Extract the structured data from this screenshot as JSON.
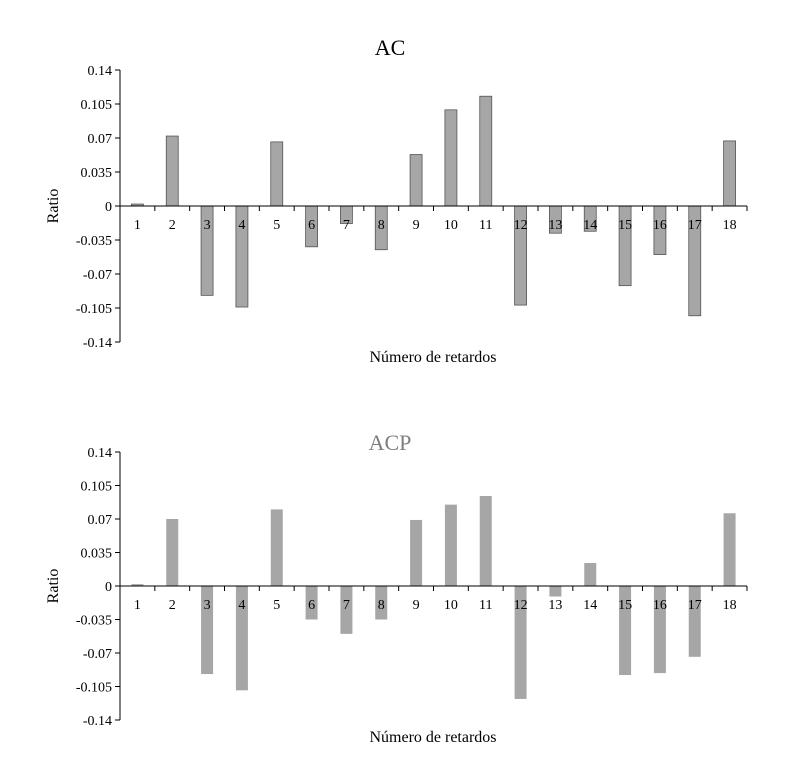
{
  "chart_data": [
    {
      "type": "bar",
      "title": "AC",
      "xlabel": "Número de retardos",
      "ylabel": "Ratio",
      "ylim": [
        -0.14,
        0.14
      ],
      "yticks": [
        "0.14",
        "0.105",
        "0.07",
        "0.035",
        "0",
        "-0.035",
        "-0.07",
        "-0.105",
        "-0.14"
      ],
      "categories": [
        "1",
        "2",
        "3",
        "4",
        "5",
        "6",
        "7",
        "8",
        "9",
        "10",
        "11",
        "12",
        "13",
        "14",
        "15",
        "16",
        "17",
        "18"
      ],
      "values": [
        0.002,
        0.072,
        -0.092,
        -0.104,
        0.066,
        -0.042,
        -0.018,
        -0.045,
        0.053,
        0.099,
        0.113,
        -0.102,
        -0.028,
        -0.026,
        -0.082,
        -0.05,
        -0.113,
        0.067
      ],
      "bar_color": "#a6a6a6",
      "bar_outline": "#555555",
      "title_color": "#000000",
      "grid": false
    },
    {
      "type": "bar",
      "title": "ACP",
      "xlabel": "Número de retardos",
      "ylabel": "Ratio",
      "ylim": [
        -0.14,
        0.14
      ],
      "yticks": [
        "0.14",
        "0.105",
        "0.07",
        "0.035",
        "0",
        "-0.035",
        "-0.07",
        "-0.105",
        "-0.14"
      ],
      "categories": [
        "1",
        "2",
        "3",
        "4",
        "5",
        "6",
        "7",
        "8",
        "9",
        "10",
        "11",
        "12",
        "13",
        "14",
        "15",
        "16",
        "17",
        "18"
      ],
      "values": [
        0.002,
        0.07,
        -0.092,
        -0.109,
        0.08,
        -0.035,
        -0.05,
        -0.035,
        0.069,
        0.085,
        0.094,
        -0.118,
        -0.011,
        0.024,
        -0.093,
        -0.091,
        -0.074,
        0.076
      ],
      "bar_color": "#a6a6a6",
      "bar_outline": "",
      "title_color": "#7f7f7f",
      "grid": false
    }
  ]
}
